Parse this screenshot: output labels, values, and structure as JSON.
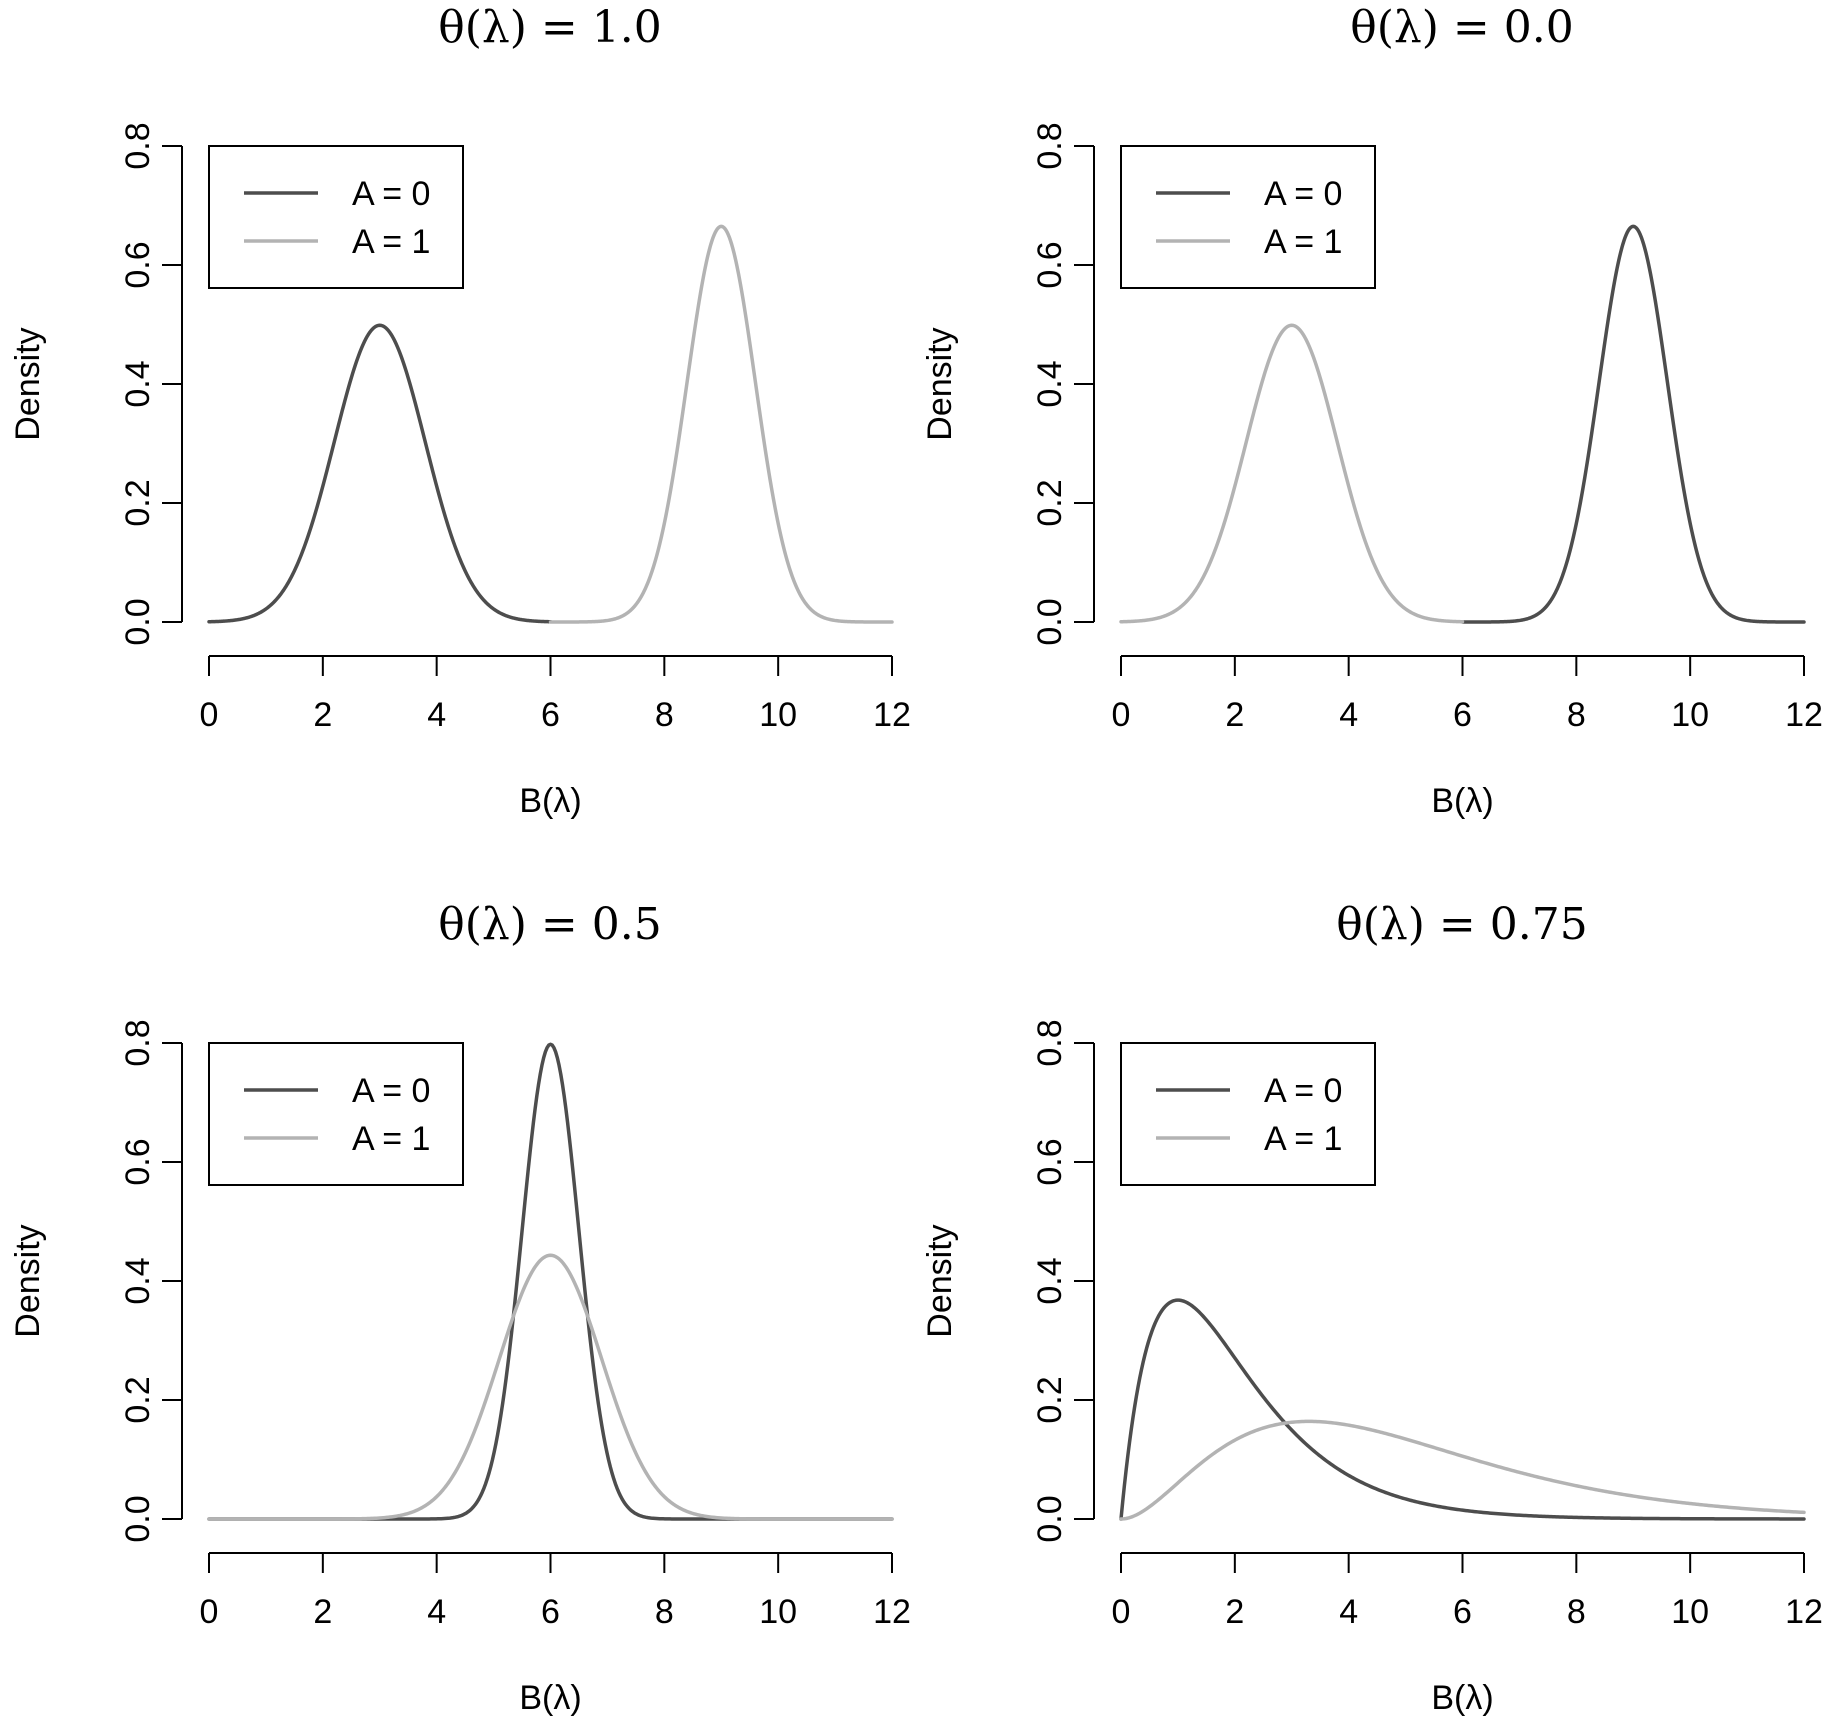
{
  "chart_data": [
    {
      "type": "line",
      "title": "θ(λ) = 1.0",
      "xlabel": "B(λ)",
      "ylabel": "Density",
      "xlim": [
        0,
        12
      ],
      "ylim": [
        0,
        0.8
      ],
      "xticks": [
        "0",
        "2",
        "4",
        "6",
        "8",
        "10",
        "12"
      ],
      "yticks": [
        "0.0",
        "0.2",
        "0.4",
        "0.6",
        "0.8"
      ],
      "legend_position": "top-left",
      "series": [
        {
          "name": "A = 0",
          "color": "#4d4d4d",
          "distribution": "normal",
          "mean": 3,
          "sd": 0.8,
          "x_range": [
            0,
            6
          ]
        },
        {
          "name": "A = 1",
          "color": "#b3b3b3",
          "distribution": "normal",
          "mean": 9,
          "sd": 0.6,
          "x_range": [
            6,
            12
          ]
        }
      ]
    },
    {
      "type": "line",
      "title": "θ(λ) = 0.0",
      "xlabel": "B(λ)",
      "ylabel": "Density",
      "xlim": [
        0,
        12
      ],
      "ylim": [
        0,
        0.8
      ],
      "xticks": [
        "0",
        "2",
        "4",
        "6",
        "8",
        "10",
        "12"
      ],
      "yticks": [
        "0.0",
        "0.2",
        "0.4",
        "0.6",
        "0.8"
      ],
      "legend_position": "top-left",
      "series": [
        {
          "name": "A = 0",
          "color": "#4d4d4d",
          "distribution": "normal",
          "mean": 9,
          "sd": 0.6,
          "x_range": [
            6,
            12
          ]
        },
        {
          "name": "A = 1",
          "color": "#b3b3b3",
          "distribution": "normal",
          "mean": 3,
          "sd": 0.8,
          "x_range": [
            0,
            6
          ]
        }
      ]
    },
    {
      "type": "line",
      "title": "θ(λ) = 0.5",
      "xlabel": "B(λ)",
      "ylabel": "Density",
      "xlim": [
        0,
        12
      ],
      "ylim": [
        0,
        0.8
      ],
      "xticks": [
        "0",
        "2",
        "4",
        "6",
        "8",
        "10",
        "12"
      ],
      "yticks": [
        "0.0",
        "0.2",
        "0.4",
        "0.6",
        "0.8"
      ],
      "legend_position": "top-left",
      "series": [
        {
          "name": "A = 0",
          "color": "#4d4d4d",
          "distribution": "normal",
          "mean": 6,
          "sd": 0.5,
          "x_range": [
            0,
            12
          ]
        },
        {
          "name": "A = 1",
          "color": "#b3b3b3",
          "distribution": "normal",
          "mean": 6,
          "sd": 0.9,
          "x_range": [
            0,
            12
          ]
        }
      ]
    },
    {
      "type": "line",
      "title": "θ(λ) = 0.75",
      "xlabel": "B(λ)",
      "ylabel": "Density",
      "xlim": [
        0,
        12
      ],
      "ylim": [
        0,
        0.8
      ],
      "xticks": [
        "0",
        "2",
        "4",
        "6",
        "8",
        "10",
        "12"
      ],
      "yticks": [
        "0.0",
        "0.2",
        "0.4",
        "0.6",
        "0.8"
      ],
      "legend_position": "top-left",
      "series": [
        {
          "name": "A = 0",
          "color": "#4d4d4d",
          "distribution": "gamma",
          "shape": 2,
          "scale": 1,
          "x_range": [
            0,
            12
          ]
        },
        {
          "name": "A = 1",
          "color": "#b3b3b3",
          "distribution": "gamma",
          "shape": 3,
          "scale": 1.65,
          "x_range": [
            0,
            12
          ]
        }
      ]
    }
  ]
}
